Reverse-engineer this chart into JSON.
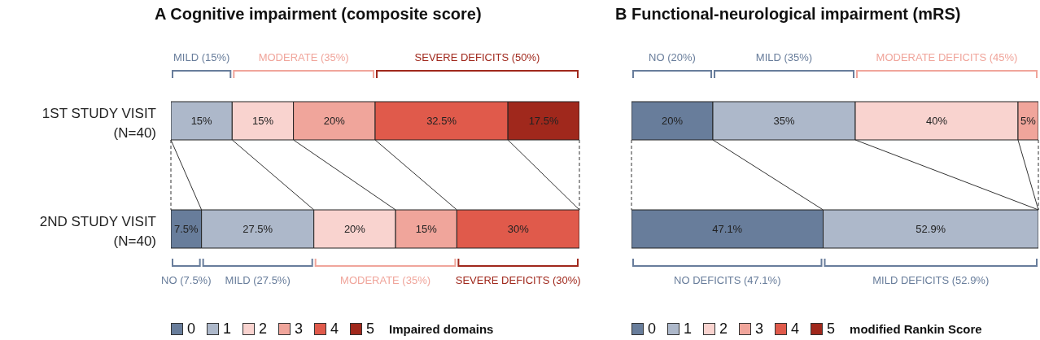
{
  "chart_data": [
    {
      "type": "bar",
      "orientation": "horizontal",
      "stacked": true,
      "title": "A  Cognitive impairment (composite score)",
      "categories": [
        "1ST STUDY VISIT (N=40)",
        "2ND STUDY VISIT (N=40)"
      ],
      "series": [
        {
          "name": "0",
          "color": "#687d9b",
          "values": [
            null,
            7.5
          ],
          "value_labels": [
            null,
            "7.5%"
          ]
        },
        {
          "name": "1",
          "color": "#adb8ca",
          "values": [
            15,
            27.5
          ],
          "value_labels": [
            "15%",
            "27.5%"
          ]
        },
        {
          "name": "2",
          "color": "#f9d3cf",
          "values": [
            15,
            20
          ],
          "value_labels": [
            "15%",
            "20%"
          ]
        },
        {
          "name": "3",
          "color": "#f0a59b",
          "values": [
            20,
            15
          ],
          "value_labels": [
            "20%",
            "15%"
          ]
        },
        {
          "name": "4",
          "color": "#e05a4b",
          "values": [
            32.5,
            30
          ],
          "value_labels": [
            "32.5%",
            "30%"
          ]
        },
        {
          "name": "5",
          "color": "#a0281c",
          "values": [
            17.5,
            null
          ],
          "value_labels": [
            "17.5%",
            null
          ]
        }
      ],
      "legend": "bottom",
      "legend_title": "Impaired domains",
      "annotations": [
        "MILD (15%)",
        "MODERATE (35%)",
        "SEVERE DEFICITS (50%)",
        "NO (7.5%)",
        "MILD (27.5%)",
        "MODERATE (35%)",
        "SEVERE DEFICITS (30%)"
      ]
    },
    {
      "type": "bar",
      "orientation": "horizontal",
      "stacked": true,
      "title": "B  Functional-neurological impairment (mRS)",
      "categories": [
        null,
        null
      ],
      "tick_labels": false,
      "series": [
        {
          "name": "0",
          "color": "#687d9b",
          "values": [
            20,
            47.1
          ],
          "value_labels": [
            "20%",
            "47.1%"
          ]
        },
        {
          "name": "1",
          "color": "#adb8ca",
          "values": [
            35,
            52.9
          ],
          "value_labels": [
            "35%",
            "52.9%"
          ]
        },
        {
          "name": "2",
          "color": "#f9d3cf",
          "values": [
            40,
            null
          ],
          "value_labels": [
            "40%",
            null
          ]
        },
        {
          "name": "3",
          "color": "#f0a59b",
          "values": [
            5,
            null
          ],
          "value_labels": [
            "5%",
            null
          ]
        },
        {
          "name": "4",
          "color": "#e05a4b",
          "values": [
            null,
            null
          ],
          "value_labels": [
            null,
            null
          ]
        },
        {
          "name": "5",
          "color": "#a0281c",
          "values": [
            null,
            null
          ],
          "value_labels": [
            null,
            null
          ]
        }
      ],
      "legend": "bottom",
      "legend_title": "modified Rankin Score",
      "annotations": [
        "NO (20%)",
        "MILD (35%)",
        "MODERATE DEFICITS (45%)",
        "NO DEFICITS (47.1%)",
        "MILD DEFICITS (52.9%)"
      ]
    }
  ]
}
